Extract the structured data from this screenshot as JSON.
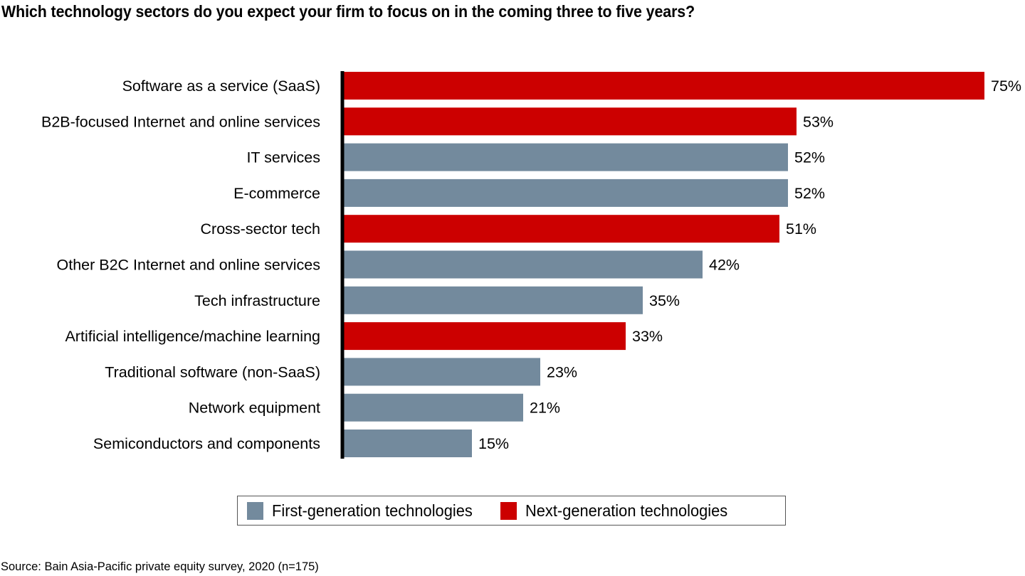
{
  "title": "Which technology sectors do you expect your firm to focus on in the coming three to five years?",
  "source": "Source: Bain Asia-Pacific private equity survey, 2020 (n=175)",
  "colors": {
    "first_generation": "#738a9d",
    "next_generation": "#cc0000",
    "axis": "#000000"
  },
  "chart_data": {
    "type": "bar",
    "orientation": "horizontal",
    "title": "Which technology sectors do you expect your firm to focus on in the coming three to five years?",
    "xlabel": "",
    "ylabel": "",
    "xlim": [
      0,
      75
    ],
    "grid": false,
    "value_format": "percent",
    "categories": [
      "Software as a service (SaaS)",
      "B2B-focused Internet and online services",
      "IT services",
      "E-commerce",
      "Cross-sector tech",
      "Other B2C Internet and online services",
      "Tech infrastructure",
      "Artificial intelligence/machine learning",
      "Traditional software (non-SaaS)",
      "Network equipment",
      "Semiconductors and components"
    ],
    "values": [
      75,
      53,
      52,
      52,
      51,
      42,
      35,
      33,
      23,
      21,
      15
    ],
    "value_labels": [
      "75%",
      "53%",
      "52%",
      "52%",
      "51%",
      "42%",
      "35%",
      "33%",
      "23%",
      "21%",
      "15%"
    ],
    "groups": [
      "next",
      "next",
      "first",
      "first",
      "next",
      "first",
      "first",
      "next",
      "first",
      "first",
      "first"
    ],
    "series": [
      {
        "name": "First-generation technologies",
        "key": "first",
        "color": "#738a9d"
      },
      {
        "name": "Next-generation technologies",
        "key": "next",
        "color": "#cc0000"
      }
    ],
    "legend_position": "bottom-center"
  },
  "legend": {
    "first_label": "First-generation technologies",
    "next_label": "Next-generation technologies"
  }
}
